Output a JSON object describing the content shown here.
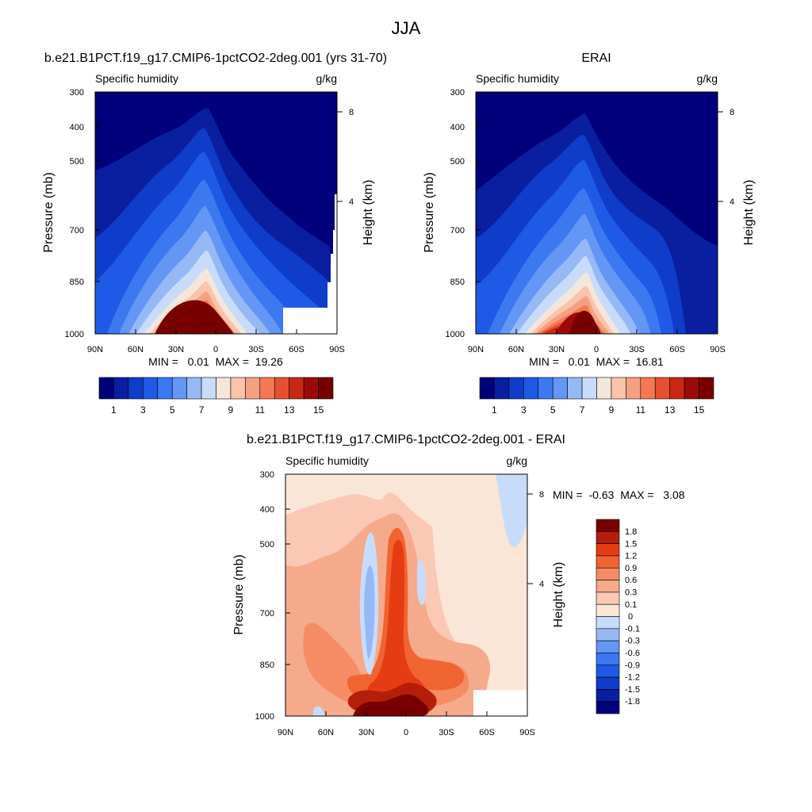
{
  "page": {
    "title": "JJA"
  },
  "colorscales": {
    "full_field": [
      "#00007a",
      "#0a1ea0",
      "#0f3cc8",
      "#1e5ae6",
      "#3c78f0",
      "#6496f5",
      "#96b9f5",
      "#c8dcfa",
      "#f5e6dc",
      "#fac3aa",
      "#f5a082",
      "#f57855",
      "#e65032",
      "#c82814",
      "#9b0a0a",
      "#780000"
    ],
    "difference": [
      "#00007a",
      "#0a1ea0",
      "#0f3cc8",
      "#1e5ae6",
      "#3c78f0",
      "#6496f5",
      "#96b9f5",
      "#c8dcfa",
      "#fae6d7",
      "#fac8b4",
      "#f5aa8c",
      "#f58c64",
      "#f06432",
      "#e63c14",
      "#b41e0a",
      "#780000"
    ]
  },
  "chart_data": [
    {
      "id": "model",
      "type": "heatmap",
      "title": "b.e21.B1PCT.f19_g17.CMIP6-1pctCO2-2deg.001 (yrs 31-70)",
      "left_label": "Specific humidity",
      "right_label": "g/kg",
      "xlabel": "",
      "ylabel": "Pressure (mb)",
      "y2label": "Height (km)",
      "x_ticks": [
        "90N",
        "60N",
        "30N",
        "0",
        "30S",
        "60S",
        "90S"
      ],
      "y_ticks": [
        300,
        400,
        500,
        700,
        850,
        1000
      ],
      "y2_ticks": [
        8,
        4
      ],
      "ylim": [
        1000,
        300
      ],
      "y_scale": "log",
      "stats": "MIN =   0.01  MAX =  19.26",
      "colorbar": {
        "orientation": "horizontal",
        "labels": [
          "1",
          "3",
          "5",
          "7",
          "9",
          "11",
          "13",
          "15"
        ],
        "levels": [
          1,
          2,
          3,
          4,
          5,
          6,
          7,
          8,
          9,
          10,
          11,
          12,
          13,
          14,
          15
        ]
      },
      "approx_values": {
        "surface_peak_latitude": "10N",
        "surface_peak_value": 19.26,
        "min_value": 0.01,
        "missing_data_region": "south of 50S below 875 mb"
      }
    },
    {
      "id": "obs",
      "type": "heatmap",
      "title": "ERAI",
      "left_label": "Specific humidity",
      "right_label": "g/kg",
      "xlabel": "",
      "ylabel": "Pressure (mb)",
      "y2label": "Height (km)",
      "x_ticks": [
        "90N",
        "60N",
        "30N",
        "0",
        "30S",
        "60S",
        "90S"
      ],
      "y_ticks": [
        300,
        400,
        500,
        700,
        850,
        1000
      ],
      "y2_ticks": [
        8,
        4
      ],
      "ylim": [
        1000,
        300
      ],
      "y_scale": "log",
      "stats": "MIN =   0.01  MAX =  16.81",
      "colorbar": {
        "orientation": "horizontal",
        "labels": [
          "1",
          "3",
          "5",
          "7",
          "9",
          "11",
          "13",
          "15"
        ],
        "levels": [
          1,
          2,
          3,
          4,
          5,
          6,
          7,
          8,
          9,
          10,
          11,
          12,
          13,
          14,
          15
        ]
      },
      "approx_values": {
        "surface_peak_latitude": "10N",
        "surface_peak_value": 16.81,
        "min_value": 0.01
      }
    },
    {
      "id": "diff",
      "type": "heatmap",
      "title": "b.e21.B1PCT.f19_g17.CMIP6-1pctCO2-2deg.001 - ERAI",
      "left_label": "Specific humidity",
      "right_label": "g/kg",
      "xlabel": "",
      "ylabel": "Pressure (mb)",
      "y2label": "Height (km)",
      "x_ticks": [
        "90N",
        "60N",
        "30N",
        "0",
        "30S",
        "60S",
        "90S"
      ],
      "y_ticks": [
        300,
        400,
        500,
        700,
        850,
        1000
      ],
      "y2_ticks": [
        8,
        4
      ],
      "ylim": [
        1000,
        300
      ],
      "y_scale": "log",
      "stats": "MIN =  -0.63  MAX =   3.08",
      "colorbar": {
        "orientation": "vertical",
        "labels": [
          "1.8",
          "1.5",
          "1.2",
          "0.9",
          "0.6",
          "0.3",
          "0.1",
          "0",
          "-0.1",
          "-0.3",
          "-0.6",
          "-0.9",
          "-1.2",
          "-1.5",
          "-1.8"
        ],
        "levels": [
          -1.8,
          -1.5,
          -1.2,
          -0.9,
          -0.6,
          -0.3,
          -0.1,
          0,
          0.1,
          0.3,
          0.6,
          0.9,
          1.2,
          1.5,
          1.8
        ]
      },
      "approx_values": {
        "max_value": 3.08,
        "min_value": -0.63,
        "max_location": "surface 20N-10S",
        "negative_bands": [
          "25N-35N 480-850 mb",
          "5S-10S 500-650 mb",
          "75S-85S 300-500 mb"
        ]
      }
    }
  ]
}
